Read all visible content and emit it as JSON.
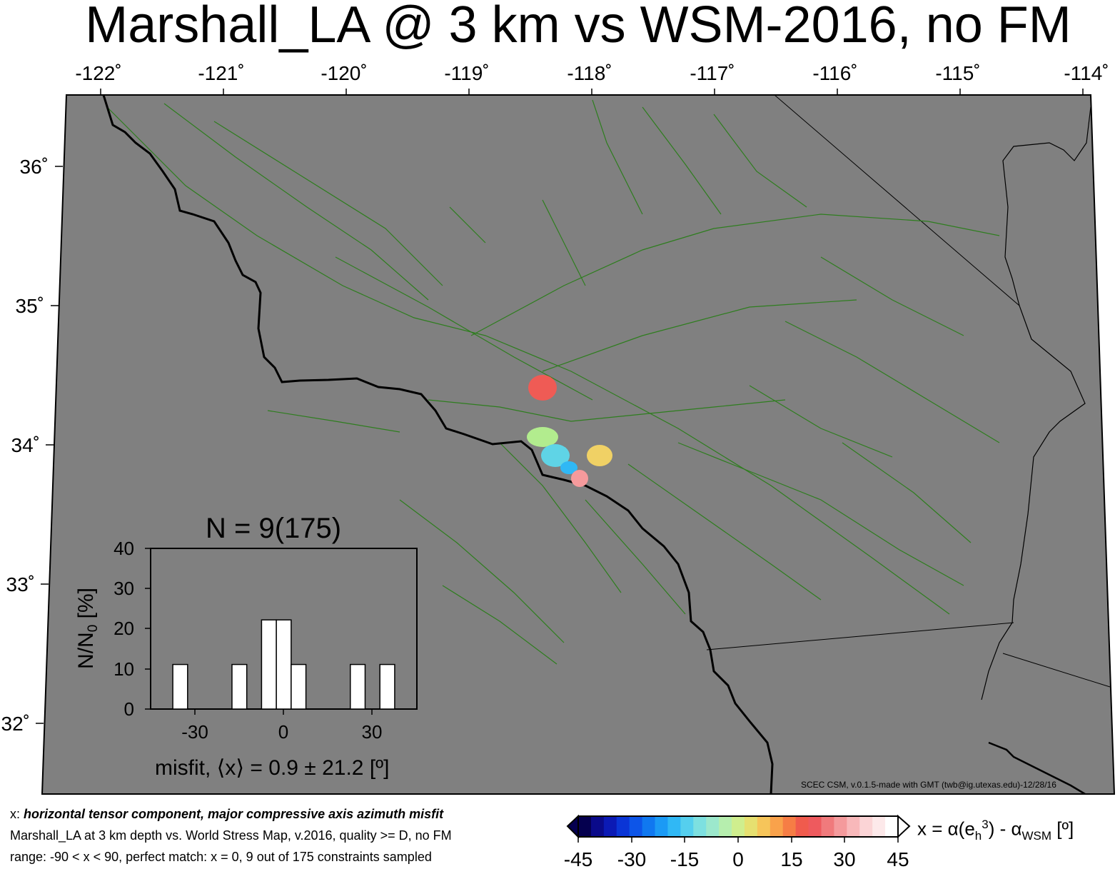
{
  "title": "Marshall_LA @ 3 km vs WSM-2016, no FM",
  "map": {
    "lon_ticks": [
      "-122˚",
      "-121˚",
      "-120˚",
      "-119˚",
      "-118˚",
      "-117˚",
      "-116˚",
      "-115˚",
      "-114˚"
    ],
    "lat_ticks": [
      "36˚",
      "35˚",
      "34˚",
      "33˚",
      "32˚"
    ],
    "background_color": "#808080",
    "fault_color": "#2e7d1e",
    "coast_color": "#000000",
    "credit": "SCEC CSM, v.0.1.5-made with GMT (twb@ig.utexas.edu)-12/28/16"
  },
  "histogram": {
    "title": "N = 9(175)",
    "ylabel": "N/N0 [%]",
    "misfit_label": "misfit, ⟨x⟩ = 0.9 ± 21.2 [º]",
    "y_ticks": [
      "0",
      "10",
      "20",
      "30",
      "40"
    ],
    "x_ticks": [
      "-30",
      "0",
      "30"
    ]
  },
  "colorbar": {
    "label": "x = α(eh3) - αWSM [º]",
    "ticks": [
      "-45",
      "-30",
      "-15",
      "0",
      "15",
      "30",
      "45"
    ],
    "colors": [
      "#05004f",
      "#0a0a8a",
      "#0b1ab5",
      "#0a35d6",
      "#0d55e8",
      "#1078f0",
      "#1b9af5",
      "#30b8f5",
      "#55cfee",
      "#7de0e0",
      "#9ce8cc",
      "#b6eeae",
      "#cfee8e",
      "#e6e070",
      "#f6c55a",
      "#f9a24b",
      "#f67d45",
      "#f05b4d",
      "#ee5a5e",
      "#f07a7c",
      "#f49a9c",
      "#f8b8ba",
      "#fbd4d6",
      "#fde9ea",
      "#ffffff"
    ]
  },
  "caption": {
    "line1_prefix": "x: ",
    "line1_bold": "horizontal tensor component, major compressive axis azimuth misfit",
    "line2": "Marshall_LA at 3 km depth vs.  World Stress Map, v.2016, quality >= D, no FM",
    "line3": "range: -90 < x < 90, perfect match: x = 0, 9 out of 175 constraints sampled"
  },
  "chart_data": {
    "type": "bar",
    "title": "N = 9(175)",
    "xlabel": "misfit, ⟨x⟩ = 0.9 ± 21.2 [º]",
    "ylabel": "N/N0 [%]",
    "x_bin_width": 5,
    "bin_centers": [
      -35,
      -15,
      -5,
      0,
      5,
      25,
      35
    ],
    "values": [
      11.1,
      11.1,
      22.2,
      22.2,
      11.1,
      11.1,
      11.1
    ],
    "xlim": [
      -45,
      45
    ],
    "ylim": [
      0,
      40
    ],
    "grid": false
  }
}
